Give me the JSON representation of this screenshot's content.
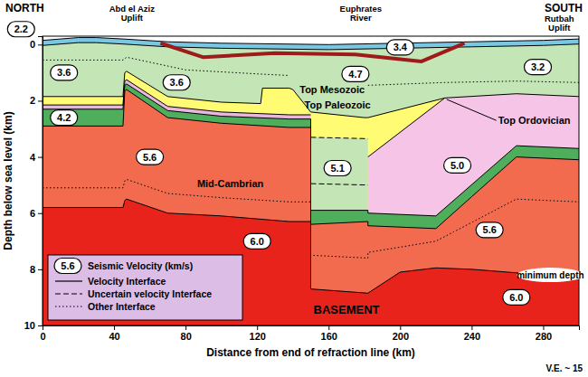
{
  "chart_data": {
    "type": "cross_section",
    "x_label": "Distance from end of refraction line (km)",
    "y_label": "Depth below sea level (km)",
    "xlim": [
      0,
      300
    ],
    "xticks": [
      0,
      40,
      80,
      120,
      160,
      200,
      240,
      280
    ],
    "ylim": [
      -0.3,
      10
    ],
    "yticks": [
      0,
      2,
      4,
      6,
      8,
      10
    ],
    "direction_labels": {
      "left": "NORTH",
      "right": "SOUTH"
    },
    "place_labels": [
      {
        "lines": [
          "Abd el Aziz",
          "Uplift"
        ],
        "x": 50
      },
      {
        "lines": [
          "Euphrates",
          "River"
        ],
        "x": 178
      },
      {
        "lines": [
          "Rutbah",
          "Uplift"
        ],
        "x": 289
      }
    ],
    "layers": [
      {
        "color": "#79c7e3",
        "line_style": "solid",
        "x": [
          0,
          20,
          30,
          45,
          70,
          100,
          160,
          200,
          240,
          280,
          300
        ],
        "y": [
          -0.15,
          -0.25,
          -0.25,
          -0.2,
          -0.1,
          -0.05,
          0,
          -0.05,
          -0.1,
          -0.15,
          -0.2
        ]
      },
      {
        "color": "#c4e5b6",
        "line_style": "solid",
        "x": [
          0,
          20,
          30,
          45,
          70,
          100,
          160,
          200,
          240,
          280,
          300
        ],
        "y": [
          0.03,
          -0.07,
          -0.07,
          -0.02,
          0.08,
          0.13,
          0.18,
          0.13,
          0.08,
          0.03,
          -0.02
        ]
      },
      {
        "color": "#fffb73",
        "line_style": "solid",
        "x": [
          0,
          45,
          46,
          47,
          70,
          100,
          122,
          123,
          138,
          140,
          150,
          180,
          182,
          225
        ],
        "y": [
          1.85,
          1.85,
          1.0,
          0.95,
          1.85,
          2.05,
          2.1,
          1.55,
          1.55,
          1.6,
          2.4,
          2.6,
          2.6,
          1.9
        ]
      },
      {
        "color": "#e9b6de",
        "line_style": "solid",
        "x": [
          0,
          45,
          46,
          47,
          70,
          100,
          138,
          150
        ],
        "y": [
          2.15,
          2.15,
          1.3,
          1.25,
          2.2,
          2.4,
          2.5,
          2.5
        ]
      },
      {
        "color": "#c4e5b6",
        "line_style": "dashed",
        "x": [
          150,
          182
        ],
        "y": [
          3.3,
          3.35
        ]
      },
      {
        "color": "#f5c4e6",
        "line_style": "solid",
        "x": [
          182,
          225,
          265,
          300
        ],
        "y": [
          4.0,
          1.9,
          1.75,
          1.85
        ]
      },
      {
        "color": "#4fae5c",
        "line_style": "solid",
        "x": [
          0,
          45,
          46,
          47,
          70,
          100,
          138,
          150,
          150,
          182,
          182,
          220,
          265,
          300
        ],
        "y": [
          2.3,
          2.3,
          1.45,
          1.4,
          2.35,
          2.55,
          2.65,
          2.65,
          5.9,
          5.9,
          6.0,
          6.1,
          3.6,
          3.7
        ]
      },
      {
        "color": "#f36b4f",
        "line_style": "solid",
        "x": [
          0,
          45,
          46,
          47,
          70,
          100,
          138,
          150,
          150,
          182,
          182,
          220,
          265,
          300
        ],
        "y": [
          2.9,
          2.9,
          1.65,
          1.6,
          2.6,
          2.8,
          2.95,
          2.95,
          6.4,
          6.3,
          6.45,
          6.55,
          4.0,
          4.1
        ]
      },
      {
        "color": "#e8231c",
        "line_style": "solid",
        "x": [
          0,
          45,
          46,
          47,
          70,
          100,
          138,
          150,
          150,
          182,
          200,
          220,
          240,
          260,
          300
        ],
        "y": [
          5.8,
          5.8,
          5.55,
          5.5,
          6.0,
          6.1,
          6.3,
          6.3,
          8.7,
          8.85,
          8.1,
          7.95,
          8.0,
          8.1,
          8.3
        ]
      }
    ],
    "interfaces": [
      {
        "line_style": "dotted",
        "x": [
          0,
          45,
          46,
          47,
          70,
          100,
          138,
          150,
          150,
          182,
          182,
          220,
          265,
          300
        ],
        "y": [
          5.1,
          5.1,
          4.85,
          4.8,
          5.3,
          5.45,
          5.6,
          5.6,
          7.5,
          7.6,
          7.4,
          7.0,
          5.5,
          5.6
        ]
      },
      {
        "line_style": "dotted",
        "x": [
          0,
          45,
          46,
          47,
          80,
          122,
          138
        ],
        "y": [
          0.55,
          0.55,
          0.5,
          0.45,
          0.9,
          1.05,
          1.1
        ]
      },
      {
        "line_style": "dotted",
        "x": [
          182,
          225,
          265,
          300
        ],
        "y": [
          1.45,
          1.35,
          1.3,
          1.35
        ]
      },
      {
        "line_style": "dashed",
        "x": [
          150,
          182
        ],
        "y": [
          4.95,
          5.0
        ]
      },
      {
        "line_style": "solid",
        "color": "#9e1b1b",
        "x": [
          66,
          90,
          130,
          175,
          212,
          236
        ],
        "y": [
          -0.05,
          0.45,
          0.3,
          0.35,
          0.6,
          -0.05
        ]
      }
    ],
    "velocity_labels": [
      {
        "value": 2.2,
        "x": -12,
        "y": -0.55
      },
      {
        "value": 3.6,
        "x": 12,
        "y": 1.0
      },
      {
        "value": 3.4,
        "x": 200,
        "y": 0.1
      },
      {
        "value": 4.7,
        "x": 175,
        "y": 1.05
      },
      {
        "value": 3.2,
        "x": 277,
        "y": 0.8
      },
      {
        "value": 4.2,
        "x": 12,
        "y": 2.6
      },
      {
        "value": 3.6,
        "x": 75,
        "y": 1.35
      },
      {
        "value": 5.1,
        "x": 165,
        "y": 4.4
      },
      {
        "value": 5.0,
        "label": "5.0",
        "x": 232,
        "y": 4.3
      },
      {
        "value": 5.6,
        "x": 60,
        "y": 4.0
      },
      {
        "value": 5.6,
        "x": 250,
        "y": 6.6
      },
      {
        "value": 6.0,
        "label": "6.0",
        "x": 120,
        "y": 7.0
      },
      {
        "value": 6.0,
        "label": "6.0",
        "x": 265,
        "y": 9.0
      }
    ],
    "annotations": [
      {
        "text": "Top Mesozoic",
        "x": 162,
        "y": 1.6
      },
      {
        "text": "Top Paleozoic",
        "x": 165,
        "y": 2.15
      },
      {
        "text": "Top Ordovician",
        "x": 275,
        "y": 2.7,
        "pointer": {
          "x": 226,
          "y": 1.95
        }
      },
      {
        "text": "Mid-Cambrian",
        "x": 105,
        "y": 4.95
      },
      {
        "text": "BASEMENT",
        "x": 170,
        "y": 9.45
      },
      {
        "text": "minimum depth",
        "x": 284,
        "y": 8.2
      }
    ],
    "legend": "lower left",
    "legend_entries": {
      "velocity_sample": 5.6,
      "velocity_text": "Seismic Velocity (km/s)",
      "lines": [
        {
          "line_style": "solid",
          "text": "Velocity Interface"
        },
        {
          "line_style": "dashed",
          "text": "Uncertain velocity Interface"
        },
        {
          "line_style": "dotted",
          "text": "Other Interface"
        }
      ]
    },
    "footnote": "V.E. ~ 15"
  }
}
